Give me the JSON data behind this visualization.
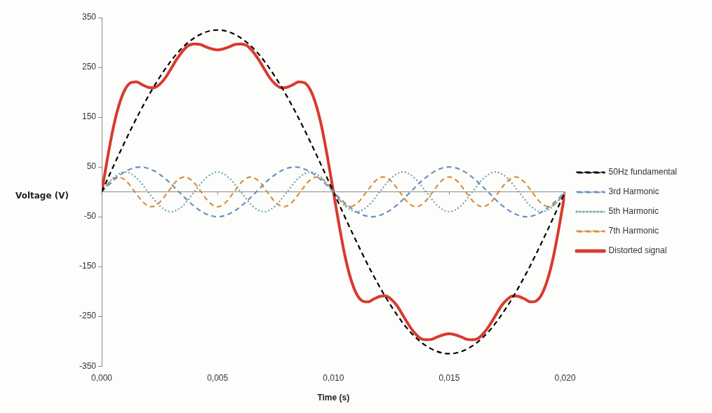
{
  "chart_data": {
    "type": "line",
    "xlabel": "Time (s)",
    "ylabel": "Voltage (V)",
    "legend": "right",
    "grid": false,
    "marker": "none",
    "xlim": [
      0,
      0.02
    ],
    "xticks": [
      {
        "value": 0,
        "label": "0,000"
      },
      {
        "value": 0.005,
        "label": "0,005"
      },
      {
        "value": 0.01,
        "label": "0,010"
      },
      {
        "value": 0.015,
        "label": "0,015"
      },
      {
        "value": 0.02,
        "label": "0,020"
      }
    ],
    "ylim": [
      -350,
      350
    ],
    "yticks": [
      -350,
      -250,
      -150,
      -50,
      50,
      150,
      250,
      350
    ],
    "series": [
      {
        "name": "50Hz fundamental",
        "color": "#000000",
        "line_style": "dashed",
        "x": [
          0,
          0.00083,
          0.00167,
          0.0025,
          0.00333,
          0.00417,
          0.005,
          0.00583,
          0.00667,
          0.0075,
          0.00833,
          0.00917,
          0.01,
          0.01083,
          0.01167,
          0.0125,
          0.01333,
          0.01417,
          0.015,
          0.01583,
          0.01667,
          0.0175,
          0.01833,
          0.01917,
          0.02
        ],
        "values": [
          0,
          84,
          163,
          230,
          282,
          314,
          325,
          314,
          282,
          230,
          163,
          84,
          0,
          -84,
          -163,
          -230,
          -282,
          -314,
          -325,
          -314,
          -282,
          -230,
          -163,
          -84,
          0
        ]
      },
      {
        "name": "3rd Harmonic",
        "color": "#6f8fbf",
        "line_style": "dashed",
        "x": [
          0,
          0.00056,
          0.00111,
          0.00167,
          0.00222,
          0.00278,
          0.00333,
          0.00389,
          0.00444,
          0.005,
          0.00556,
          0.00611,
          0.00667,
          0.00722,
          0.00778,
          0.00833,
          0.00889,
          0.00944,
          0.01,
          0.01056,
          0.01111,
          0.01167,
          0.01222,
          0.01278,
          0.01333,
          0.01389,
          0.01444,
          0.015,
          0.01556,
          0.01611,
          0.01667,
          0.01722,
          0.01778,
          0.01833,
          0.01889,
          0.01944,
          0.02
        ],
        "values": [
          0,
          25,
          43,
          50,
          43,
          25,
          0,
          -25,
          -43,
          -50,
          -43,
          -25,
          0,
          25,
          43,
          50,
          43,
          25,
          0,
          -25,
          -43,
          -50,
          -43,
          -25,
          0,
          25,
          43,
          50,
          43,
          25,
          0,
          -25,
          -43,
          -50,
          -43,
          -25,
          0
        ]
      },
      {
        "name": "5th Harmonic",
        "color": "#6fa8a0",
        "line_style": "dotted",
        "x": [
          0,
          0.0005,
          0.001,
          0.0015,
          0.002,
          0.0025,
          0.003,
          0.0035,
          0.004,
          0.0045,
          0.005,
          0.0055,
          0.006,
          0.0065,
          0.007,
          0.0075,
          0.008,
          0.0085,
          0.009,
          0.0095,
          0.01,
          0.0105,
          0.011,
          0.0115,
          0.012,
          0.0125,
          0.013,
          0.0135,
          0.014,
          0.0145,
          0.015,
          0.0155,
          0.016,
          0.0165,
          0.017,
          0.0175,
          0.018,
          0.0185,
          0.019,
          0.0195,
          0.02
        ],
        "values": [
          0,
          28,
          40,
          28,
          0,
          -28,
          -40,
          -28,
          0,
          28,
          40,
          28,
          0,
          -28,
          -40,
          -28,
          0,
          28,
          40,
          28,
          0,
          -28,
          -40,
          -28,
          0,
          28,
          40,
          28,
          0,
          -28,
          -40,
          -28,
          0,
          28,
          40,
          28,
          0,
          -28,
          -40,
          -28,
          0
        ]
      },
      {
        "name": "7th Harmonic",
        "color": "#d9903a",
        "line_style": "dashed",
        "x": [
          0,
          0.00036,
          0.00071,
          0.00107,
          0.00143,
          0.00179,
          0.00214,
          0.0025,
          0.00286,
          0.00321,
          0.00357,
          0.00393,
          0.00429,
          0.00464,
          0.005,
          0.00536,
          0.00571,
          0.00607,
          0.00643,
          0.00679,
          0.00714,
          0.0075,
          0.00786,
          0.00821,
          0.00857,
          0.00893,
          0.00929,
          0.00964,
          0.01,
          0.01036,
          0.01071,
          0.01107,
          0.01143,
          0.01179,
          0.01214,
          0.0125,
          0.01286,
          0.01321,
          0.01357,
          0.01393,
          0.01429,
          0.01464,
          0.015,
          0.01536,
          0.01571,
          0.01607,
          0.01643,
          0.01679,
          0.01714,
          0.0175,
          0.01786,
          0.01821,
          0.01857,
          0.01893,
          0.01929,
          0.01964,
          0.02
        ],
        "values": [
          0,
          21,
          30,
          21,
          0,
          -21,
          -30,
          -21,
          0,
          21,
          30,
          21,
          0,
          -21,
          -30,
          -21,
          0,
          21,
          30,
          21,
          0,
          -21,
          -30,
          -21,
          0,
          21,
          30,
          21,
          0,
          -21,
          -30,
          -21,
          0,
          21,
          30,
          21,
          0,
          -21,
          -30,
          -21,
          0,
          21,
          30,
          21,
          0,
          -21,
          -30,
          -21,
          0,
          21,
          30,
          21,
          0,
          -21,
          -30,
          -21,
          0
        ]
      },
      {
        "name": "Distorted signal",
        "color": "#d93a2e",
        "line_style": "solid",
        "x": [
          0,
          0.00025,
          0.0005,
          0.00075,
          0.001,
          0.00125,
          0.0015,
          0.00175,
          0.002,
          0.00225,
          0.0025,
          0.00275,
          0.003,
          0.00325,
          0.0035,
          0.00375,
          0.004,
          0.00425,
          0.0045,
          0.00475,
          0.005,
          0.00525,
          0.0055,
          0.00575,
          0.006,
          0.00625,
          0.0065,
          0.00675,
          0.007,
          0.00725,
          0.0075,
          0.00775,
          0.008,
          0.00825,
          0.0085,
          0.00875,
          0.009,
          0.00925,
          0.0095,
          0.00975,
          0.01,
          0.01025,
          0.0105,
          0.01075,
          0.011,
          0.01125,
          0.0115,
          0.01175,
          0.012,
          0.01225,
          0.0125,
          0.01275,
          0.013,
          0.01325,
          0.0135,
          0.01375,
          0.014,
          0.01425,
          0.0145,
          0.01475,
          0.015,
          0.01525,
          0.0155,
          0.01575,
          0.016,
          0.01625,
          0.0165,
          0.01675,
          0.017,
          0.01725,
          0.0175,
          0.01775,
          0.018,
          0.01825,
          0.0185,
          0.01875,
          0.019,
          0.01925,
          0.0195,
          0.01975,
          0.02
        ],
        "values": [
          0,
          68,
          129,
          175,
          205,
          219,
          221,
          215,
          210,
          209,
          216,
          229,
          248,
          267,
          283,
          294,
          297,
          296,
          291,
          287,
          285,
          287,
          291,
          296,
          297,
          294,
          283,
          267,
          248,
          229,
          216,
          209,
          210,
          215,
          221,
          219,
          205,
          175,
          129,
          68,
          0,
          -68,
          -129,
          -175,
          -205,
          -219,
          -221,
          -215,
          -210,
          -209,
          -216,
          -229,
          -248,
          -267,
          -283,
          -294,
          -297,
          -296,
          -291,
          -287,
          -285,
          -287,
          -291,
          -296,
          -297,
          -294,
          -283,
          -267,
          -248,
          -229,
          -216,
          -209,
          -210,
          -215,
          -221,
          -219,
          -205,
          -175,
          -129,
          -68,
          0
        ]
      }
    ]
  }
}
